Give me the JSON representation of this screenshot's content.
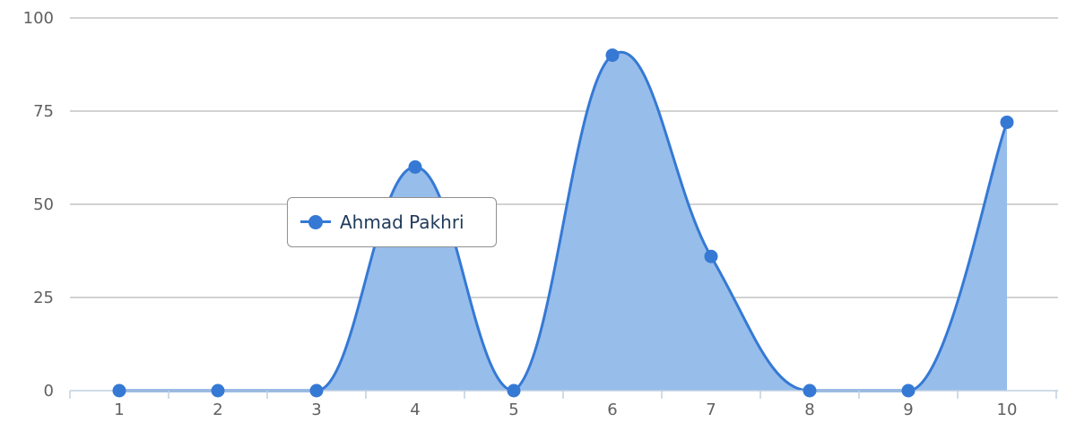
{
  "chart_data": {
    "type": "area",
    "x": [
      1,
      2,
      3,
      4,
      5,
      6,
      7,
      8,
      9,
      10
    ],
    "series": [
      {
        "name": "Ahmad Pakhri",
        "values": [
          0,
          0,
          0,
          60,
          0,
          90,
          36,
          0,
          0,
          72
        ]
      }
    ],
    "ylim": [
      0,
      100
    ],
    "yticks": [
      0,
      25,
      50,
      75,
      100
    ],
    "xticks": [
      1,
      2,
      3,
      4,
      5,
      6,
      7,
      8,
      9,
      10
    ],
    "grid": true,
    "smooth": true,
    "legend_placement": "center-left"
  },
  "colors": {
    "series": "#3579d4",
    "fill": "#97bdeb",
    "grid": "#b8b8b8",
    "axis": "#c0d0e0"
  }
}
